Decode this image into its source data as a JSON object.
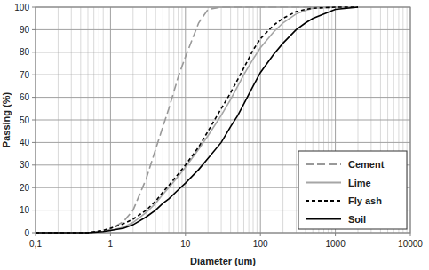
{
  "chart_data": {
    "type": "line",
    "x_label": "Diameter (um)",
    "y_label": "Passing (%)",
    "x": [
      0.1,
      0.5,
      0.8,
      1,
      1.5,
      2,
      3,
      4,
      5,
      6,
      8,
      10,
      15,
      20,
      30,
      40,
      50,
      60,
      80,
      100,
      150,
      200,
      300,
      400,
      500,
      1000,
      2000
    ],
    "series": [
      {
        "name": "Cement",
        "color": "#999999",
        "line_style": "longdash",
        "values": [
          0,
          0,
          0.5,
          1.5,
          5,
          10,
          24,
          37,
          47,
          55,
          69,
          78,
          93,
          99,
          100,
          100,
          100,
          100,
          100,
          100,
          100,
          100,
          100,
          100,
          100,
          100,
          100
        ]
      },
      {
        "name": "Lime",
        "color": "#a6a6a6",
        "line_style": "solid",
        "values": [
          0,
          0,
          0.5,
          1,
          2.5,
          4.5,
          9,
          13,
          17,
          20,
          25,
          29,
          37,
          43,
          52,
          59,
          65,
          70,
          77,
          82,
          89,
          93,
          97,
          98.5,
          99.5,
          100,
          100
        ]
      },
      {
        "name": "Fly ash",
        "color": "#000000",
        "line_style": "dashed",
        "values": [
          0,
          0,
          1,
          2,
          4,
          6,
          10,
          14,
          18,
          21,
          26,
          30,
          38,
          45,
          55,
          62,
          68,
          73,
          81,
          86,
          92,
          95,
          98,
          99,
          99.5,
          100,
          100
        ]
      },
      {
        "name": "Soil",
        "color": "#000000",
        "line_style": "solid",
        "values": [
          0,
          0,
          0.5,
          1,
          2,
          3.5,
          7,
          10,
          13,
          15,
          19,
          22,
          28,
          33,
          40,
          47,
          52,
          57,
          65,
          71,
          79,
          84,
          90,
          93,
          95,
          99,
          100
        ]
      }
    ],
    "xlim": [
      0.1,
      10000
    ],
    "xticks": [
      {
        "value": 0.1,
        "label": "0,1"
      },
      1,
      10,
      100,
      1000,
      10000
    ],
    "ylim": [
      0,
      100
    ],
    "yticks": [
      0,
      10,
      20,
      30,
      40,
      50,
      60,
      70,
      80,
      90,
      100
    ],
    "log": "x",
    "grid": true,
    "legend": "lower right"
  }
}
